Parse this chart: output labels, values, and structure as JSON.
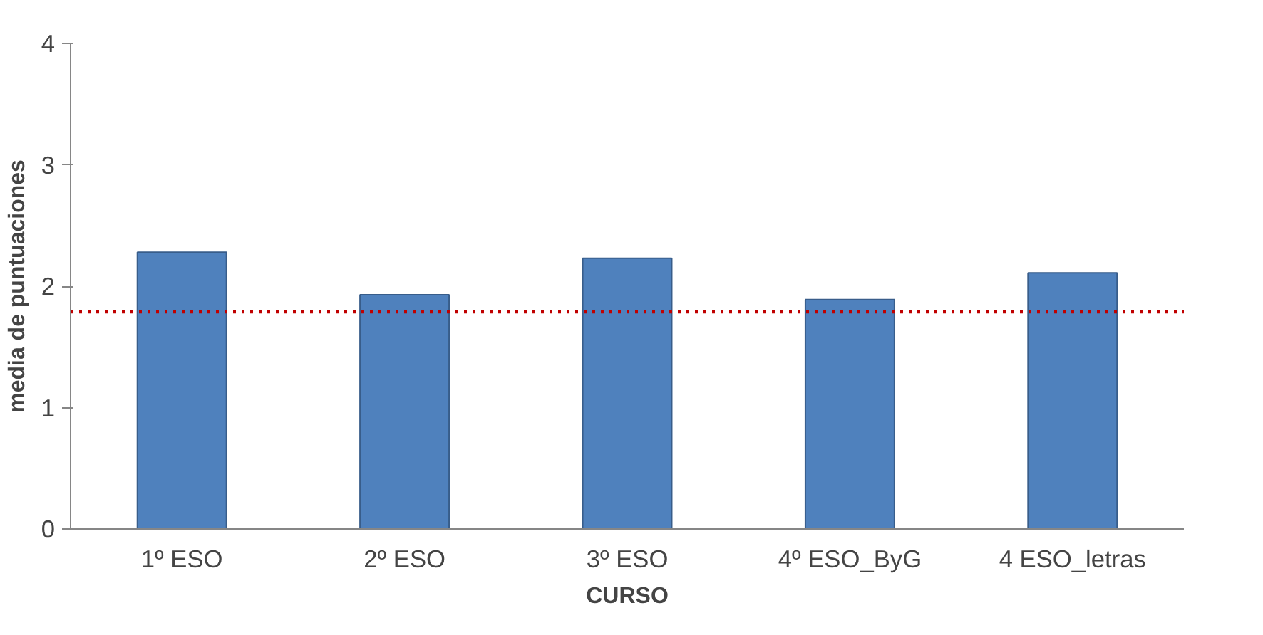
{
  "chart_data": {
    "type": "bar",
    "xlabel": "CURSO",
    "ylabel": "media de puntuaciones",
    "categories": [
      "1º ESO",
      "2º ESO",
      "3º ESO",
      "4º ESO_ByG",
      "4 ESO_letras"
    ],
    "values": [
      2.28,
      1.93,
      2.23,
      1.89,
      2.11
    ],
    "color": "#4f81bd",
    "ylim": [
      0,
      4
    ],
    "yticks": [
      0,
      1,
      2,
      3,
      4
    ],
    "grid": false,
    "ref_lines": [
      {
        "axis": "y",
        "value": 1.79,
        "color": "#c00000",
        "line_style": "dotted"
      }
    ]
  }
}
